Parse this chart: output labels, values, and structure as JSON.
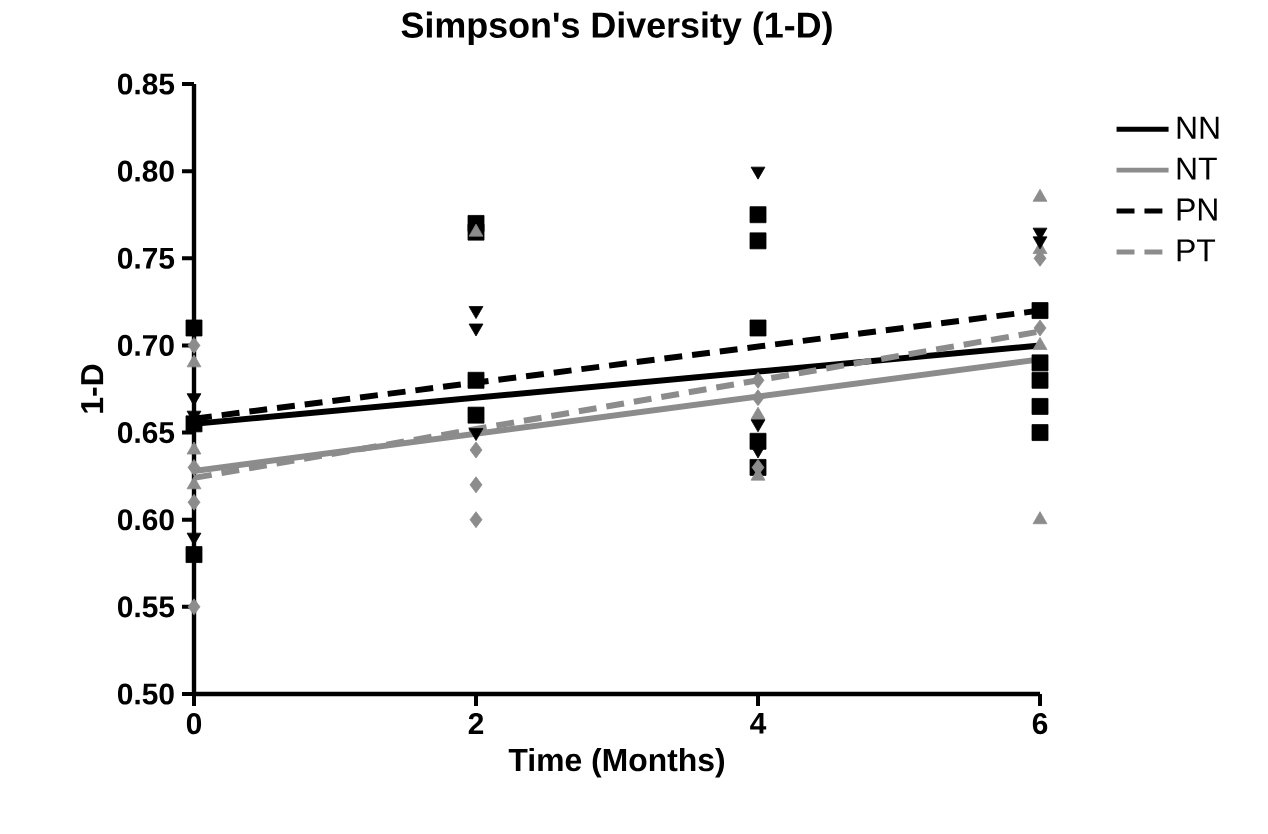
{
  "chart_data": {
    "type": "scatter",
    "title": "Simpson's Diversity (1-D)",
    "xlabel": "Time (Months)",
    "ylabel": "1-D",
    "xlim": [
      0,
      6
    ],
    "xticks": [
      0,
      2,
      4,
      6
    ],
    "ylim": [
      0.5,
      0.85
    ],
    "yticks": [
      {
        "value": 0.5,
        "label": "0.50"
      },
      {
        "value": 0.55,
        "label": "0.55"
      },
      {
        "value": 0.6,
        "label": "0.60"
      },
      {
        "value": 0.65,
        "label": "0.65"
      },
      {
        "value": 0.7,
        "label": "0.70"
      },
      {
        "value": 0.75,
        "label": "0.75"
      },
      {
        "value": 0.8,
        "label": "0.80"
      },
      {
        "value": 0.85,
        "label": "0.85"
      }
    ],
    "grid": false,
    "legend": "top right",
    "series": [
      {
        "marker": "square",
        "color": "#000000",
        "x": [
          0,
          0,
          0,
          2,
          2,
          2,
          2,
          4,
          4,
          4,
          4,
          4,
          6,
          6,
          6,
          6,
          6
        ],
        "values": [
          0.58,
          0.71,
          0.655,
          0.77,
          0.765,
          0.68,
          0.66,
          0.775,
          0.76,
          0.71,
          0.645,
          0.63,
          0.72,
          0.69,
          0.68,
          0.665,
          0.65
        ]
      },
      {
        "marker": "triangle",
        "color": "#8c8c8c",
        "x": [
          0,
          0,
          0,
          2,
          4,
          4,
          6,
          6,
          6,
          6
        ],
        "values": [
          0.62,
          0.64,
          0.69,
          0.765,
          0.625,
          0.66,
          0.785,
          0.755,
          0.6,
          0.7
        ]
      },
      {
        "marker": "triangle-down",
        "color": "#000000",
        "x": [
          0,
          0,
          0,
          2,
          2,
          2,
          4,
          4,
          4,
          6,
          6
        ],
        "values": [
          0.59,
          0.67,
          0.66,
          0.72,
          0.71,
          0.65,
          0.8,
          0.64,
          0.655,
          0.765,
          0.76
        ]
      },
      {
        "marker": "diamond",
        "color": "#8c8c8c",
        "x": [
          0,
          0,
          0,
          0,
          2,
          2,
          2,
          4,
          4,
          4,
          6,
          6
        ],
        "values": [
          0.55,
          0.61,
          0.63,
          0.7,
          0.6,
          0.62,
          0.64,
          0.63,
          0.68,
          0.67,
          0.75,
          0.71
        ]
      },
      {
        "type": "line",
        "name": "NN",
        "color": "#000000",
        "line_style": "solid",
        "x": [
          0,
          6
        ],
        "values": [
          0.655,
          0.7
        ]
      },
      {
        "type": "line",
        "name": "NT",
        "color": "#8c8c8c",
        "line_style": "solid",
        "x": [
          0,
          6
        ],
        "values": [
          0.628,
          0.692
        ]
      },
      {
        "type": "line",
        "name": "PN",
        "color": "#000000",
        "line_style": "dashed",
        "x": [
          0,
          6
        ],
        "values": [
          0.658,
          0.72
        ]
      },
      {
        "type": "line",
        "name": "PT",
        "color": "#8c8c8c",
        "line_style": "dashed",
        "x": [
          0,
          6
        ],
        "values": [
          0.624,
          0.708
        ]
      }
    ]
  }
}
